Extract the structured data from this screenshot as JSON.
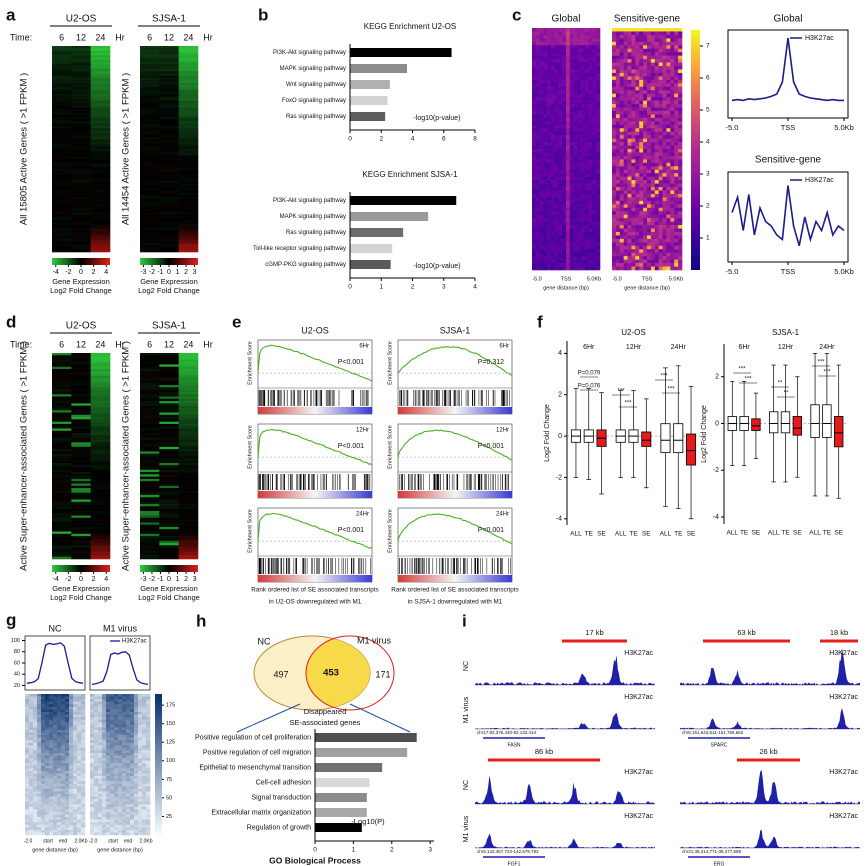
{
  "chart_data": [
    {
      "type": "expression-heatmap",
      "panel_label": "a",
      "time_label": "Time:",
      "unit": "Hr",
      "scale_title": "Gene Expression",
      "scale_subtitle": "Log2 Fold Change",
      "heatmaps": [
        {
          "title": "U2-OS",
          "times": [
            "6",
            "12",
            "24"
          ],
          "ylabel": "All 15805 Active Genes ( >1 FPKM )",
          "scale_ticks": [
            -4,
            -2,
            0,
            2,
            4
          ],
          "scale_lim": [
            -4.6,
            4.6
          ]
        },
        {
          "title": "SJSA-1",
          "times": [
            "6",
            "12",
            "24"
          ],
          "ylabel": "All 14454 Active Genes ( >1 FPKM )",
          "scale_ticks": [
            -3,
            -2,
            -1,
            0,
            1,
            2,
            3
          ],
          "scale_lim": [
            -3.4,
            3.4
          ]
        }
      ]
    },
    {
      "type": "expression-heatmap",
      "panel_label": "d",
      "time_label": "Time:",
      "unit": "Hr",
      "scale_title": "Gene Expression",
      "scale_subtitle": "Log2 Fold Change",
      "heatmaps": [
        {
          "title": "U2-OS",
          "times": [
            "6",
            "12",
            "24"
          ],
          "ylabel": "Active Super-enhancer-associated Genes ( >1 FPKM )",
          "scale_ticks": [
            -4,
            -2,
            0,
            2,
            4
          ],
          "scale_lim": [
            -4.6,
            4.6
          ]
        },
        {
          "title": "SJSA-1",
          "times": [
            "6",
            "12",
            "24"
          ],
          "ylabel": "Active Super-enhancer-associated Genes ( >1 FPKM )",
          "scale_ticks": [
            -3,
            -2,
            -1,
            0,
            1,
            2,
            3
          ],
          "scale_lim": [
            -3.4,
            3.4
          ]
        }
      ]
    },
    {
      "type": "bar",
      "panel_label": "b",
      "title": "KEGG Enrichment  U2-OS",
      "axis_label": "-log10(p-value)",
      "categories": [
        "PI3K-Akt signaling pathway",
        "MAPK signaling pathway",
        "Wnt signaling pathway",
        "FoxO signaling pathway",
        "Ras signaling pathway"
      ],
      "values": [
        6.5,
        3.65,
        2.55,
        2.4,
        2.25
      ],
      "colors": [
        "#000000",
        "#8c8c8c",
        "#b0b0b0",
        "#d2d2d2",
        "#5e5e5e"
      ],
      "xlim": [
        0,
        8
      ],
      "xticks": [
        0,
        2,
        4,
        6,
        8
      ]
    },
    {
      "type": "bar",
      "title": "KEGG Enrichment  SJSA-1",
      "axis_label": "-log10(p-value)",
      "categories": [
        "PI3K-Akt signaling pathway",
        "MAPK signaling pathway",
        "Ras signaling pathway",
        "Toll-like receptor signaling pathway",
        "cGMP-PKG signaling pathway"
      ],
      "values": [
        3.4,
        2.5,
        1.7,
        1.35,
        1.3
      ],
      "colors": [
        "#000000",
        "#9a9a9a",
        "#6e6e6e",
        "#d3d3d3",
        "#5a5a5a"
      ],
      "xlim": [
        0,
        4
      ],
      "xticks": [
        0,
        1,
        2,
        3,
        4
      ]
    },
    {
      "type": "signal-heatmap",
      "panel_label": "c",
      "heatmap_titles": [
        "Global",
        "Sensitive-gene"
      ],
      "heatmap_xticks": [
        "-5.0",
        "TSS",
        "5.0Kb"
      ],
      "heatmap_xlabel": "gene distance (bp)",
      "colorbar_ticks": [
        1,
        2,
        3,
        4,
        5,
        6,
        7
      ],
      "colorbar_lim": [
        0,
        7.5
      ],
      "legend": "H3K27ac",
      "line_color": "#1c1c8c",
      "profiles": [
        {
          "x": [
            -5,
            -4.5,
            -4,
            -3.5,
            -3,
            -2.5,
            -2,
            -1.5,
            -1,
            -0.5,
            0,
            0.5,
            1,
            1.5,
            2,
            2.5,
            3,
            3.5,
            4,
            4.5,
            5
          ],
          "values": [
            0.22,
            0.23,
            0.22,
            0.24,
            0.23,
            0.24,
            0.25,
            0.27,
            0.3,
            0.45,
            1.0,
            0.45,
            0.3,
            0.27,
            0.25,
            0.24,
            0.23,
            0.22,
            0.23,
            0.22,
            0.22
          ],
          "ylim": [
            0,
            1.1
          ],
          "xticks": [
            {
              "value": -5,
              "label": "-5.0"
            },
            {
              "value": 0,
              "label": "TSS"
            },
            {
              "value": 5,
              "label": "5.0Kb"
            }
          ]
        },
        {
          "x": [
            -5,
            -4.5,
            -4,
            -3.5,
            -3,
            -2.5,
            -2,
            -1.5,
            -1,
            -0.5,
            0,
            0.5,
            1,
            1.5,
            2,
            2.5,
            3,
            3.5,
            4,
            4.5,
            5
          ],
          "values": [
            0.55,
            0.72,
            0.35,
            0.75,
            0.3,
            0.6,
            0.45,
            0.4,
            0.3,
            0.25,
            0.85,
            0.4,
            0.18,
            0.5,
            0.25,
            0.45,
            0.35,
            0.55,
            0.3,
            0.4,
            0.35
          ],
          "ylim": [
            0,
            1
          ],
          "xticks": [
            {
              "value": -5,
              "label": "-5.0"
            },
            {
              "value": 0,
              "label": "TSS"
            },
            {
              "value": 5,
              "label": "5.0Kb"
            }
          ]
        }
      ]
    },
    {
      "type": "gsea",
      "panel_label": "e",
      "ylabel": "Enrichment Score",
      "columns": [
        {
          "title": "U2-OS",
          "caption": [
            "Rank ordered list of SE associated transcripts",
            "in U2-OS downregulated with M1"
          ],
          "plots": [
            {
              "time": "6Hr",
              "p": "P<0.001"
            },
            {
              "time": "12Hr",
              "p": "P<0.001"
            },
            {
              "time": "24Hr",
              "p": "P<0.001"
            }
          ]
        },
        {
          "title": "SJSA-1",
          "caption": [
            "Rank ordered list of SE associated transcripts",
            "in SJSA-1 downregulated with M1"
          ],
          "plots": [
            {
              "time": "6Hr",
              "p": "P=0.312"
            },
            {
              "time": "12Hr",
              "p": "P<0.001"
            },
            {
              "time": "24Hr",
              "p": "P<0.001"
            }
          ]
        }
      ]
    },
    {
      "type": "box",
      "panel_label": "f",
      "title": "U2-OS",
      "ylabel": "Log2 Fold Change",
      "groups": [
        "6Hr",
        "12Hr",
        "24Hr"
      ],
      "categories": [
        "ALL",
        "TE",
        "SE",
        "ALL",
        "TE",
        "SE",
        "ALL",
        "TE",
        "SE"
      ],
      "stats": [
        [
          -2,
          -0.3,
          0,
          0.3,
          2.3
        ],
        [
          -2.1,
          -0.3,
          0,
          0.3,
          2.3
        ],
        [
          -2.8,
          -0.5,
          -0.1,
          0.3,
          2.1
        ],
        [
          -2,
          -0.3,
          0,
          0.3,
          2.2
        ],
        [
          -2,
          -0.3,
          0,
          0.3,
          2.2
        ],
        [
          -2.5,
          -0.5,
          -0.2,
          0.2,
          1.8
        ],
        [
          -3.4,
          -0.8,
          -0.2,
          0.6,
          3.3
        ],
        [
          -3.5,
          -0.8,
          -0.2,
          0.6,
          3.4
        ],
        [
          -4,
          -1.4,
          -0.7,
          0.1,
          2.4
        ]
      ],
      "colors": [
        "#ffffff",
        "#ffffff",
        "#e41a1c",
        "#ffffff",
        "#ffffff",
        "#e41a1c",
        "#ffffff",
        "#ffffff",
        "#e41a1c"
      ],
      "ylim": [
        -4.3,
        4.6
      ],
      "yticks": [
        -4,
        -2,
        0,
        2,
        4
      ],
      "annotations": [
        "P=0.079",
        "P=0.076",
        "***",
        "***",
        "***",
        "***"
      ]
    },
    {
      "type": "box",
      "title": "SJSA-1",
      "ylabel": "Log2 Fold Change",
      "groups": [
        "6Hr",
        "12Hr",
        "24Hr"
      ],
      "categories": [
        "ALL",
        "TE",
        "SE",
        "ALL",
        "TE",
        "SE",
        "ALL",
        "TE",
        "SE"
      ],
      "stats": [
        [
          -1.8,
          -0.3,
          0,
          0.3,
          1.8
        ],
        [
          -1.8,
          -0.3,
          0,
          0.3,
          1.8
        ],
        [
          -1.5,
          -0.3,
          -0.1,
          0.2,
          1.3
        ],
        [
          -2.5,
          -0.4,
          0,
          0.5,
          2.5
        ],
        [
          -2.5,
          -0.4,
          0,
          0.5,
          2.5
        ],
        [
          -2.3,
          -0.5,
          -0.2,
          0.3,
          2
        ],
        [
          -3.1,
          -0.6,
          0,
          0.8,
          3
        ],
        [
          -3.1,
          -0.6,
          0,
          0.8,
          3
        ],
        [
          -3.2,
          -1,
          -0.4,
          0.3,
          2.5
        ]
      ],
      "colors": [
        "#ffffff",
        "#ffffff",
        "#e41a1c",
        "#ffffff",
        "#ffffff",
        "#e41a1c",
        "#ffffff",
        "#ffffff",
        "#e41a1c"
      ],
      "ylim": [
        -4.3,
        3.4
      ],
      "yticks": [
        -4,
        -2,
        0,
        2
      ],
      "annotations": [
        "***",
        "***",
        "**",
        "**",
        "***",
        "***"
      ]
    },
    {
      "type": "metagene",
      "panel_label": "g",
      "titles": [
        "NC",
        "M1 virus"
      ],
      "legend": "H3K27ac",
      "line_color": "#1c1c8c",
      "x_labels": [
        "-2.0",
        "start",
        "end",
        "2.0Kb"
      ],
      "xlabel": "gene distance (bp)",
      "profiles": [
        [
          24,
          25,
          27,
          32,
          60,
          92,
          95,
          93,
          94,
          96,
          90,
          60,
          33,
          27,
          25,
          24
        ],
        [
          22,
          23,
          25,
          28,
          45,
          75,
          78,
          76,
          79,
          80,
          74,
          50,
          30,
          25,
          23,
          22
        ]
      ],
      "ylim": [
        12,
        108
      ],
      "yticks": [
        20,
        40,
        60,
        80,
        100
      ],
      "colorbar_ticks": [
        25,
        50,
        75,
        100,
        125,
        150,
        175
      ],
      "colorbar_lim": [
        0,
        190
      ]
    },
    {
      "type": "venn-bar",
      "panel_label": "h",
      "venn": {
        "sets": [
          "NC",
          "M1 virus"
        ],
        "counts": [
          497,
          453,
          171
        ],
        "note": [
          "Disappeared",
          "SE-associated genes"
        ]
      },
      "bar": {
        "title": "GO Biological Process",
        "axis_label": "-Log10(P)",
        "categories": [
          "Positive regulation of cell proliferation",
          "Positive regulation of cell migration",
          "Epithelial to mesenchymal transition",
          "Cell-cell adhesion",
          "Signal transduction",
          "Extracellular matrix organization",
          "Regulation of growth"
        ],
        "values": [
          2.65,
          2.4,
          1.75,
          1.42,
          1.35,
          1.35,
          1.22
        ],
        "colors": [
          "#505050",
          "#a0a0a0",
          "#707070",
          "#d8d8d8",
          "#8c8c8c",
          "#a8a8a8",
          "#000000"
        ],
        "xlim": [
          0,
          3.1
        ],
        "xticks": [
          0,
          1,
          2,
          3
        ]
      }
    },
    {
      "type": "genome-tracks",
      "panel_label": "i",
      "conditions": [
        "NC",
        "M1 virus"
      ],
      "mark": "H3K27ac",
      "loci": [
        {
          "regions": [
            "17 kb"
          ],
          "gene": "FASN",
          "coord": "chr17:82,376,430-82,132,414"
        },
        {
          "regions": [
            "63 kb",
            "18 kb"
          ],
          "gene": "SPARC",
          "coord": "chr5:151,643,611-151,765,662"
        },
        {
          "regions": [
            "86 kb"
          ],
          "gene": "FGF1",
          "coord": "chr5:142,457,723-142,579,792"
        },
        {
          "regions": [
            "26 kb"
          ],
          "gene": "ERG",
          "coord": "chr21:38,414,771-38,477,589"
        }
      ]
    }
  ]
}
